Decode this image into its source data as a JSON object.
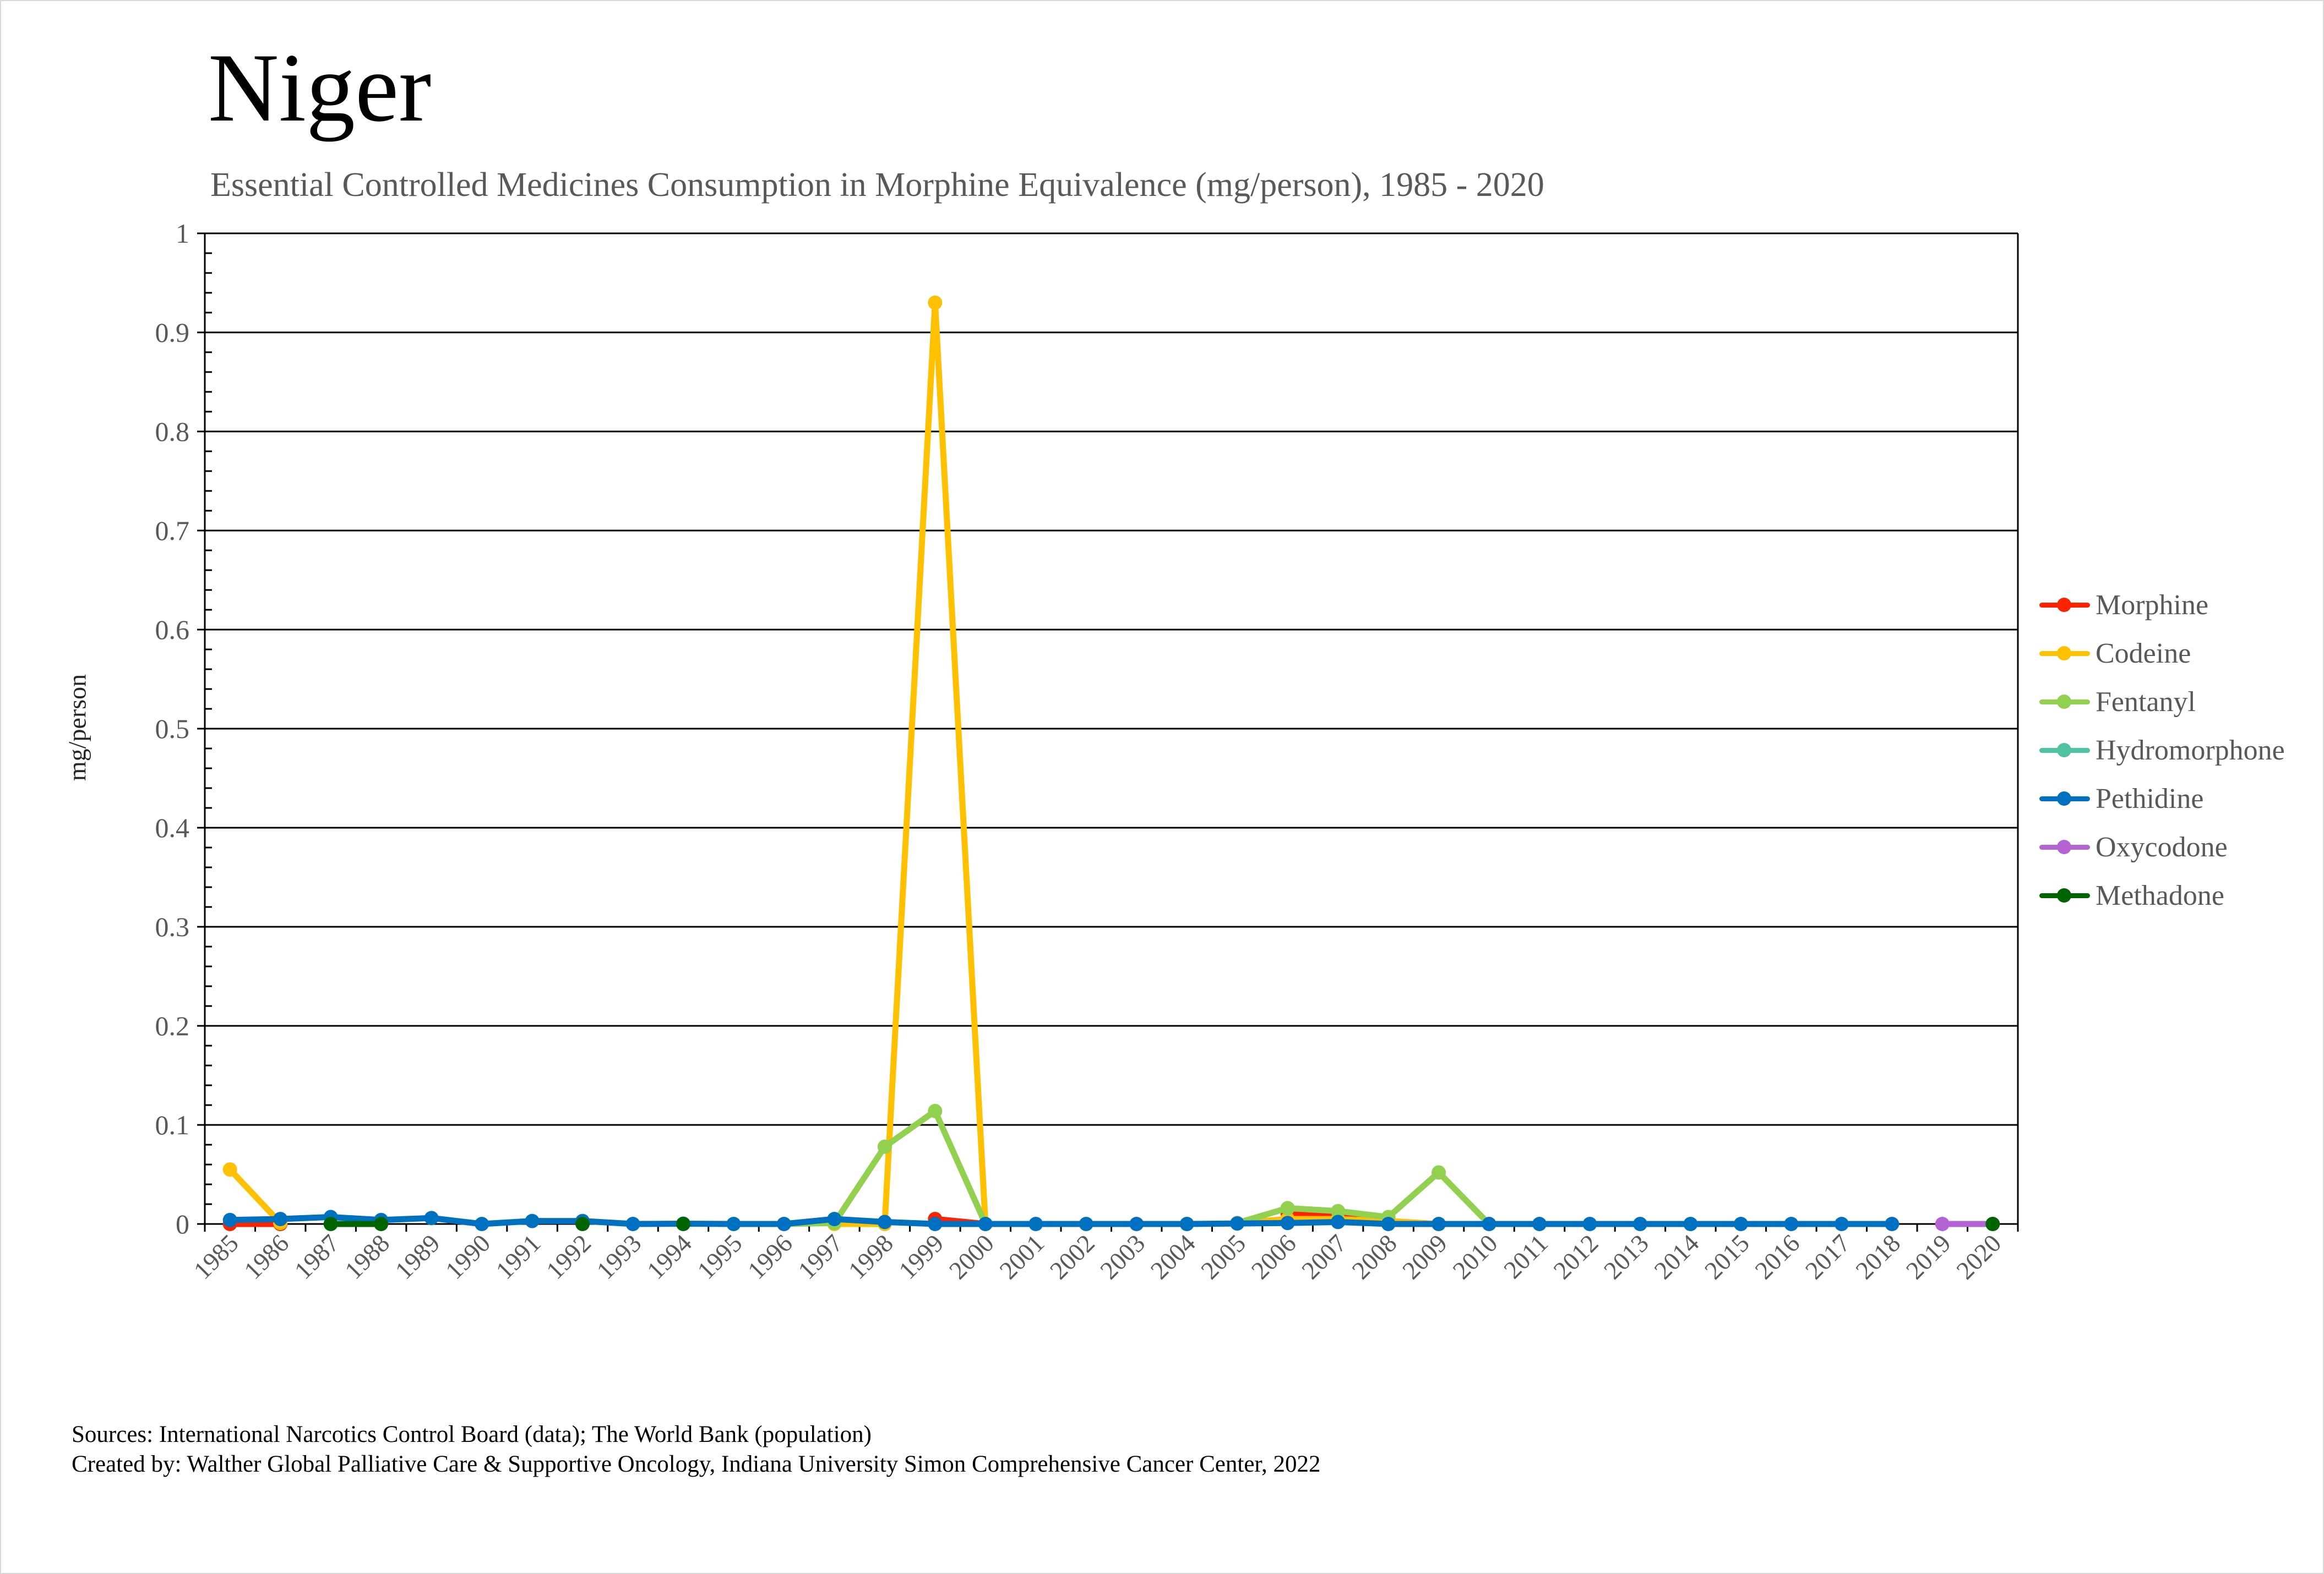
{
  "header": {
    "title": "Niger",
    "subtitle": "Essential Controlled Medicines Consumption in Morphine Equivalence (mg/person), 1985 - 2020"
  },
  "footer": {
    "sources": "Sources: International Narcotics Control Board (data); The World Bank (population)",
    "created_by": "Created by: Walther Global Palliative Care & Supportive Oncology, Indiana University Simon Comprehensive Cancer Center, 2022"
  },
  "chart_data": {
    "type": "line",
    "title": "Niger",
    "subtitle": "Essential Controlled Medicines Consumption in Morphine Equivalence (mg/person), 1985 - 2020",
    "xlabel": "",
    "ylabel": "mg/person",
    "ylim": [
      0,
      1
    ],
    "yticks": [
      0,
      0.1,
      0.2,
      0.3,
      0.4,
      0.5,
      0.6,
      0.7,
      0.8,
      0.9,
      1
    ],
    "ytick_labels": [
      "0",
      "0.1",
      "0.2",
      "0.3",
      "0.4",
      "0.5",
      "0.6",
      "0.7",
      "0.8",
      "0.9",
      "1"
    ],
    "y_minor_step": 0.02,
    "grid": true,
    "legend_position": "right",
    "categories": [
      "1985",
      "1986",
      "1987",
      "1988",
      "1989",
      "1990",
      "1991",
      "1992",
      "1993",
      "1994",
      "1995",
      "1996",
      "1997",
      "1998",
      "1999",
      "2000",
      "2001",
      "2002",
      "2003",
      "2004",
      "2005",
      "2006",
      "2007",
      "2008",
      "2009",
      "2010",
      "2011",
      "2012",
      "2013",
      "2014",
      "2015",
      "2016",
      "2017",
      "2018",
      "2019",
      "2020"
    ],
    "series": [
      {
        "name": "Morphine",
        "color": "#FF2200",
        "values": [
          0,
          0,
          null,
          null,
          null,
          null,
          null,
          null,
          null,
          null,
          null,
          null,
          null,
          null,
          0.005,
          0,
          null,
          null,
          null,
          null,
          null,
          0.011,
          0.008,
          0.002,
          null,
          null,
          null,
          null,
          null,
          null,
          null,
          null,
          null,
          null,
          null,
          null
        ]
      },
      {
        "name": "Codeine",
        "color": "#FFC000",
        "values": [
          0.055,
          0.001,
          null,
          null,
          null,
          null,
          null,
          null,
          null,
          null,
          null,
          null,
          0,
          0,
          0.93,
          0,
          null,
          null,
          null,
          null,
          0.001,
          0.005,
          0.005,
          0.003,
          0,
          null,
          null,
          null,
          null,
          null,
          null,
          null,
          null,
          null,
          null,
          null
        ]
      },
      {
        "name": "Fentanyl",
        "color": "#92D050",
        "values": [
          null,
          null,
          null,
          null,
          null,
          null,
          null,
          null,
          null,
          null,
          null,
          0,
          0.001,
          0.078,
          0.114,
          0,
          null,
          null,
          null,
          null,
          0.001,
          0.016,
          0.013,
          0.007,
          0.052,
          0,
          null,
          null,
          null,
          null,
          null,
          null,
          null,
          null,
          null,
          null
        ]
      },
      {
        "name": "Hydromorphone",
        "color": "#4FC3A1",
        "values": [
          null,
          null,
          null,
          null,
          null,
          null,
          null,
          null,
          null,
          null,
          null,
          null,
          null,
          null,
          null,
          null,
          null,
          null,
          null,
          null,
          null,
          null,
          null,
          null,
          null,
          null,
          null,
          null,
          null,
          null,
          null,
          null,
          null,
          null,
          null,
          null
        ]
      },
      {
        "name": "Pethidine",
        "color": "#0070C0",
        "values": [
          0.004,
          0.005,
          0.007,
          0.004,
          0.006,
          0,
          0.003,
          0.003,
          0,
          0.0003,
          0,
          0,
          0.005,
          0.002,
          0,
          0,
          0,
          0,
          0,
          0,
          0.0005,
          0.001,
          0.002,
          0,
          0,
          0,
          0,
          0,
          0,
          0,
          0,
          0,
          0,
          0,
          null,
          null
        ]
      },
      {
        "name": "Oxycodone",
        "color": "#B562D4",
        "values": [
          null,
          null,
          null,
          null,
          null,
          null,
          null,
          null,
          null,
          null,
          null,
          null,
          null,
          null,
          null,
          null,
          null,
          null,
          null,
          null,
          null,
          null,
          null,
          null,
          null,
          null,
          null,
          null,
          null,
          null,
          null,
          null,
          null,
          null,
          0,
          0
        ]
      },
      {
        "name": "Methadone",
        "color": "#006400",
        "values": [
          null,
          null,
          0,
          0,
          null,
          null,
          null,
          0,
          null,
          0,
          null,
          null,
          null,
          null,
          null,
          null,
          null,
          null,
          null,
          null,
          null,
          null,
          null,
          null,
          null,
          null,
          null,
          null,
          null,
          null,
          null,
          null,
          null,
          null,
          null,
          0
        ]
      }
    ]
  }
}
